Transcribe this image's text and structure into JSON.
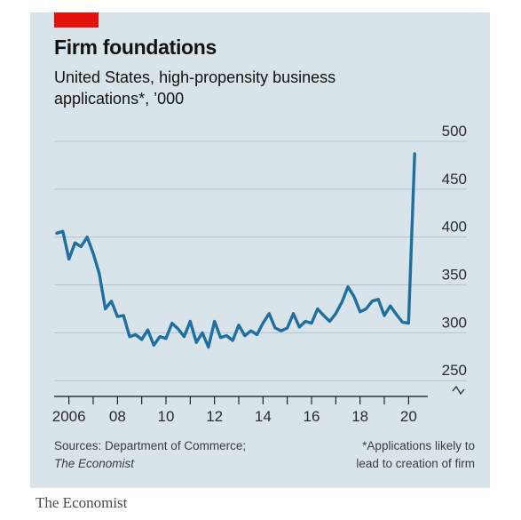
{
  "header": {
    "title": "Firm foundations",
    "subtitle": "United States, high-propensity business applications*, ’000"
  },
  "footer": {
    "sources_prefix": "Sources: Department of Commerce;",
    "sources_publication": "The Economist",
    "footnote_line1": "*Applications likely to",
    "footnote_line2": "lead to creation of firm"
  },
  "brand": "The Economist",
  "colors": {
    "line": "#1f6fa0",
    "accent": "#e3120b",
    "panel": "#d9e4ea",
    "grid": "#b2c3cd",
    "axis": "#121212"
  },
  "chart_data": {
    "type": "line",
    "title": "Firm foundations",
    "subtitle": "United States, high-propensity business applications*, ’000",
    "xlabel": "",
    "ylabel": "",
    "xlim": [
      2005.5,
      2020.5
    ],
    "ylim": [
      240,
      500
    ],
    "y_ticks": [
      250,
      300,
      350,
      400,
      450,
      500
    ],
    "y_axis_break": true,
    "x_ticks": [
      {
        "value": 2006,
        "label": "2006"
      },
      {
        "value": 2008,
        "label": "08"
      },
      {
        "value": 2010,
        "label": "10"
      },
      {
        "value": 2012,
        "label": "12"
      },
      {
        "value": 2014,
        "label": "14"
      },
      {
        "value": 2016,
        "label": "16"
      },
      {
        "value": 2018,
        "label": "18"
      },
      {
        "value": 2020,
        "label": "20"
      }
    ],
    "grid": true,
    "series": [
      {
        "color": "#1f6fa0",
        "x": [
          2005.5,
          2005.75,
          2006.0,
          2006.25,
          2006.5,
          2006.75,
          2007.0,
          2007.25,
          2007.5,
          2007.75,
          2008.0,
          2008.25,
          2008.5,
          2008.75,
          2009.0,
          2009.25,
          2009.5,
          2009.75,
          2010.0,
          2010.25,
          2010.5,
          2010.75,
          2011.0,
          2011.25,
          2011.5,
          2011.75,
          2012.0,
          2012.25,
          2012.5,
          2012.75,
          2013.0,
          2013.25,
          2013.5,
          2013.75,
          2014.0,
          2014.25,
          2014.5,
          2014.75,
          2015.0,
          2015.25,
          2015.5,
          2015.75,
          2016.0,
          2016.25,
          2016.5,
          2016.75,
          2017.0,
          2017.25,
          2017.5,
          2017.75,
          2018.0,
          2018.25,
          2018.5,
          2018.75,
          2019.0,
          2019.25,
          2019.5,
          2019.75,
          2020.0,
          2020.25
        ],
        "y": [
          404,
          406,
          377,
          394,
          390,
          400,
          383,
          362,
          325,
          333,
          317,
          318,
          296,
          298,
          293,
          303,
          287,
          296,
          294,
          310,
          304,
          296,
          312,
          290,
          300,
          285,
          312,
          295,
          297,
          292,
          308,
          297,
          302,
          298,
          310,
          320,
          305,
          302,
          305,
          320,
          306,
          312,
          310,
          325,
          318,
          312,
          320,
          332,
          348,
          338,
          322,
          325,
          333,
          335,
          318,
          328,
          319,
          311,
          310,
          487
        ]
      }
    ]
  }
}
